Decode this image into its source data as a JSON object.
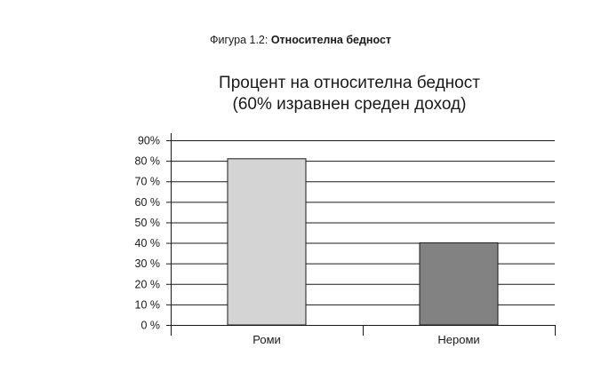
{
  "figure": {
    "caption_prefix": "Фигура 1.2: ",
    "caption_title": "Относителна бедност"
  },
  "chart_data": {
    "type": "bar",
    "title_line1": "Процент на относителна бедност",
    "title_line2": "(60% изравнен среден доход)",
    "categories": [
      "Роми",
      "Нероми"
    ],
    "values": [
      81,
      40
    ],
    "bar_colors": [
      "#d4d4d4",
      "#828282"
    ],
    "ylim": [
      0,
      90
    ],
    "y_ticks": [
      0,
      10,
      20,
      30,
      40,
      50,
      60,
      70,
      80,
      90
    ],
    "y_tick_labels": [
      "0 %",
      "10 %",
      "20 %",
      "30 %",
      "40 %",
      "50 %",
      "60 %",
      "70 %",
      "80 %",
      "90%"
    ],
    "grid": true,
    "legend": "none"
  }
}
